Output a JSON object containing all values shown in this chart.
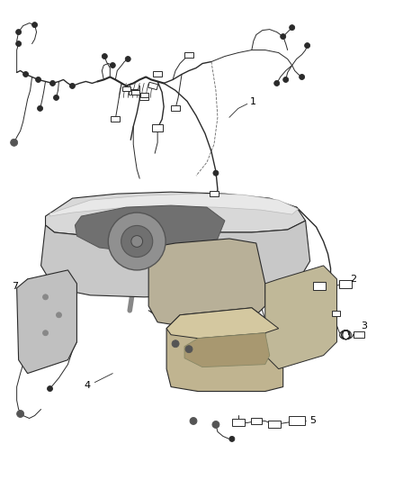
{
  "bg_color": "#ffffff",
  "line_color": "#2a2a2a",
  "label_color": "#000000",
  "fig_width": 4.38,
  "fig_height": 5.33,
  "dpi": 100,
  "label_fontsize": 8,
  "gray_light": "#d0d0d0",
  "gray_mid": "#b0b0b0",
  "gray_dark": "#888888",
  "tan_light": "#c8bc98",
  "tan_mid": "#b8aa88",
  "chrome": "#d8d8d8"
}
